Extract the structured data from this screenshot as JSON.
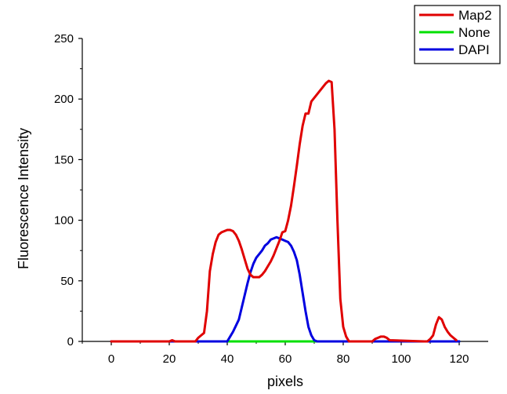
{
  "chart_data": {
    "type": "line",
    "title": "",
    "xlabel": "pixels",
    "ylabel": "Fluorescence Intensity",
    "xlim": [
      -10,
      130
    ],
    "ylim": [
      0,
      250
    ],
    "xticks": [
      0,
      20,
      40,
      60,
      80,
      100,
      120
    ],
    "yticks": [
      0,
      50,
      100,
      150,
      200,
      250
    ],
    "grid": false,
    "legend_position": "top-right",
    "series": [
      {
        "name": "Map2",
        "color": "#e00000",
        "x": [
          0,
          20,
          21,
          22,
          29,
          30,
          31,
          32,
          33,
          34,
          35,
          36,
          37,
          38,
          39,
          40,
          41,
          42,
          43,
          44,
          45,
          46,
          47,
          48,
          49,
          50,
          51,
          52,
          53,
          54,
          55,
          56,
          57,
          58,
          59,
          60,
          61,
          62,
          63,
          64,
          65,
          66,
          67,
          68,
          69,
          70,
          71,
          72,
          73,
          74,
          75,
          76,
          77,
          78,
          79,
          80,
          81,
          82,
          83,
          90,
          91,
          92,
          93,
          94,
          95,
          96,
          108,
          109,
          110,
          111,
          112,
          113,
          114,
          115,
          116,
          117,
          118,
          119
        ],
        "y": [
          0,
          0,
          1,
          0,
          0,
          3,
          5,
          7,
          25,
          58,
          72,
          82,
          88,
          90,
          91,
          92,
          92,
          91,
          88,
          83,
          76,
          68,
          60,
          55,
          53,
          53,
          53,
          55,
          58,
          62,
          66,
          71,
          77,
          83,
          90,
          91,
          100,
          112,
          128,
          145,
          163,
          178,
          188,
          188,
          198,
          201,
          204,
          207,
          210,
          213,
          215,
          214,
          175,
          100,
          35,
          12,
          4,
          0,
          0,
          0,
          2,
          3,
          4,
          4,
          3,
          1,
          0,
          0,
          2,
          5,
          14,
          20,
          18,
          12,
          8,
          5,
          3,
          1
        ]
      },
      {
        "name": "None",
        "color": "#00e000",
        "x": [
          0,
          120
        ],
        "y": [
          0,
          0
        ]
      },
      {
        "name": "DAPI",
        "color": "#0000e0",
        "x": [
          0,
          40,
          41,
          42,
          43,
          44,
          45,
          46,
          47,
          48,
          49,
          50,
          51,
          52,
          53,
          54,
          55,
          56,
          57,
          58,
          59,
          60,
          61,
          62,
          63,
          64,
          65,
          66,
          67,
          68,
          69,
          70,
          71,
          72,
          73,
          74,
          120
        ],
        "y": [
          0,
          0,
          4,
          8,
          13,
          18,
          28,
          38,
          48,
          57,
          64,
          69,
          72,
          75,
          79,
          81,
          84,
          85,
          86,
          85,
          84,
          83,
          82,
          79,
          74,
          67,
          55,
          40,
          25,
          12,
          5,
          1,
          0,
          0,
          0,
          0,
          0
        ]
      }
    ]
  }
}
